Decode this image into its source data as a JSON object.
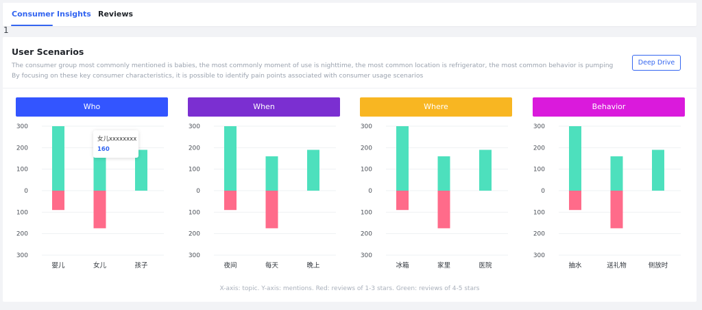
{
  "tabs": [
    {
      "label": "Consumer Insights",
      "active": true
    },
    {
      "label": "Reviews",
      "active": false
    }
  ],
  "stray_text": "1",
  "card": {
    "title": "User Scenarios",
    "description_line1": "The consumer group most commonly mentioned is babies, the most commonly moment of use is nighttime, the most common location is refrigerator, the most common behavior is pumping",
    "description_line2": "By focusing on these key consumer characteristics, it is possible to identify pain points associated with consumer usage scenarios",
    "deep_drive_label": "Deep Drive",
    "footnote": "X-axis: topic. Y-axis: mentions. Red: reviews of 1-3 stars. Green: reviews of 4-5 stars"
  },
  "tooltip": {
    "label": "女儿xxxxxxxx",
    "value": "160"
  },
  "colors": {
    "accent": "#3264f0",
    "positive": "#4de0bd",
    "negative": "#ff6b8a"
  },
  "chart_data": [
    {
      "type": "bar",
      "header": "Who",
      "header_color": "#3355ff",
      "categories": [
        "婴儿",
        "女儿",
        "孩子"
      ],
      "series": [
        {
          "values": [
            300,
            160,
            190
          ]
        },
        {
          "values": [
            -90,
            -175,
            0
          ]
        }
      ],
      "yticks": [
        "300",
        "200",
        "100",
        "0",
        "100",
        "200",
        "300"
      ],
      "ylim": [
        -300,
        300
      ]
    },
    {
      "type": "bar",
      "header": "When",
      "header_color": "#7b2fd1",
      "categories": [
        "夜间",
        "每天",
        "晚上"
      ],
      "series": [
        {
          "values": [
            300,
            160,
            190
          ]
        },
        {
          "values": [
            -90,
            -175,
            0
          ]
        }
      ],
      "yticks": [
        "300",
        "200",
        "100",
        "0",
        "100",
        "200",
        "300"
      ],
      "ylim": [
        -300,
        300
      ]
    },
    {
      "type": "bar",
      "header": "Where",
      "header_color": "#f8b622",
      "categories": [
        "冰箱",
        "家里",
        "医院"
      ],
      "series": [
        {
          "values": [
            300,
            160,
            190
          ]
        },
        {
          "values": [
            -90,
            -175,
            0
          ]
        }
      ],
      "yticks": [
        "300",
        "200",
        "100",
        "0",
        "100",
        "200",
        "300"
      ],
      "ylim": [
        -300,
        300
      ]
    },
    {
      "type": "bar",
      "header": "Behavior",
      "header_color": "#da1adc",
      "categories": [
        "抽水",
        "送礼物",
        "侧放时"
      ],
      "series": [
        {
          "values": [
            300,
            160,
            190
          ]
        },
        {
          "values": [
            -90,
            -175,
            0
          ]
        }
      ],
      "yticks": [
        "300",
        "200",
        "100",
        "0",
        "100",
        "200",
        "300"
      ],
      "ylim": [
        -300,
        300
      ]
    }
  ]
}
